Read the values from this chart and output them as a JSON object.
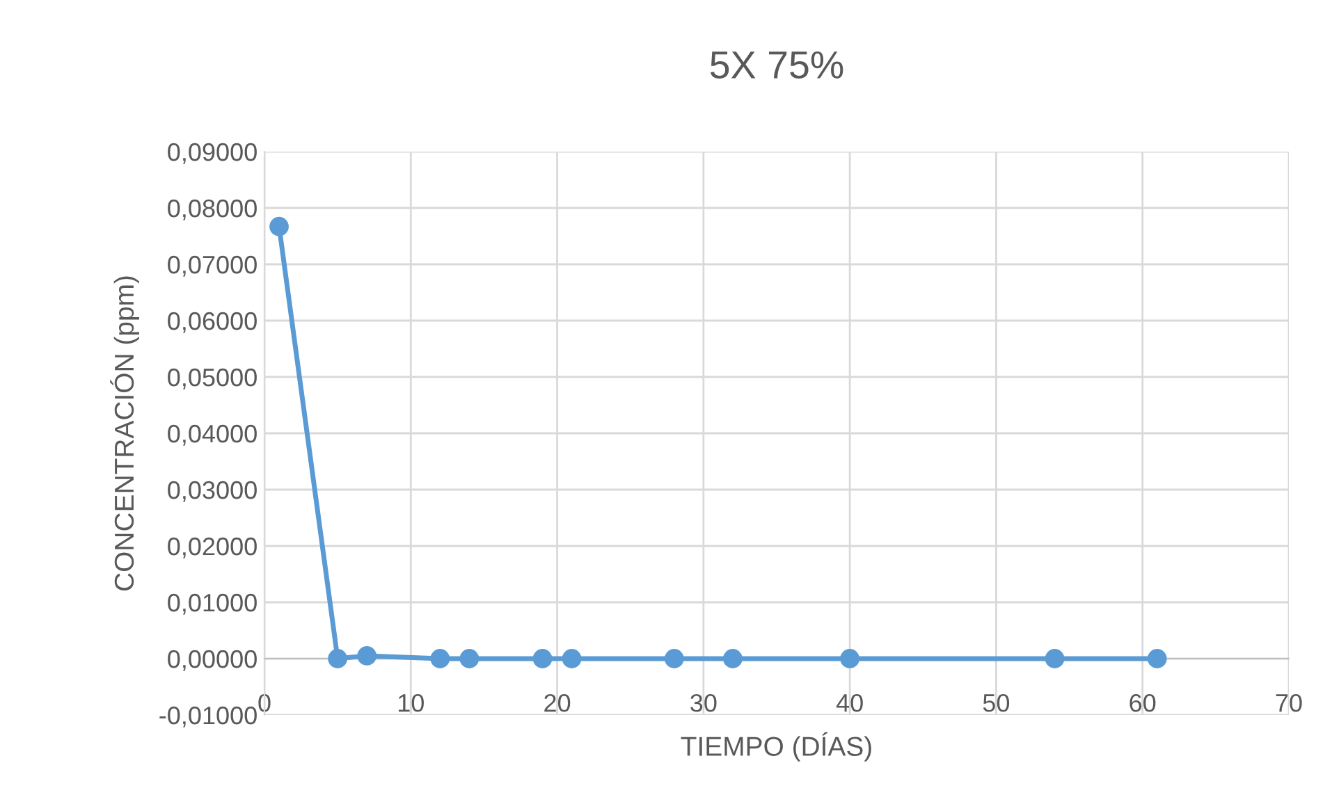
{
  "chart_data": {
    "type": "line",
    "title": "5X 75%",
    "xlabel": "TIEMPO (DÍAS)",
    "ylabel": "CONCENTRACIÓN (ppm)",
    "x": [
      1,
      5,
      7,
      12,
      14,
      19,
      21,
      28,
      32,
      40,
      54,
      61
    ],
    "series": [
      {
        "color": "#5b9bd5",
        "values": [
          0.0767,
          0.0,
          0.0005,
          0.0,
          0.0,
          0.0,
          0.0,
          0.0,
          0.0,
          0.0,
          0.0,
          0.0
        ]
      }
    ],
    "xlim": [
      0,
      70
    ],
    "xticks": [
      0,
      10,
      20,
      30,
      40,
      50,
      60,
      70
    ],
    "ylim": [
      -0.01,
      0.09
    ],
    "yticks": [
      {
        "value": -0.01,
        "label": "-0,01000"
      },
      {
        "value": 0,
        "label": "0,00000"
      },
      {
        "value": 0.01,
        "label": "0,01000"
      },
      {
        "value": 0.02,
        "label": "0,02000"
      },
      {
        "value": 0.03,
        "label": "0,03000"
      },
      {
        "value": 0.04,
        "label": "0,04000"
      },
      {
        "value": 0.05,
        "label": "0,05000"
      },
      {
        "value": 0.06,
        "label": "0,06000"
      },
      {
        "value": 0.07,
        "label": "0,07000"
      },
      {
        "value": 0.08,
        "label": "0,08000"
      },
      {
        "value": 0.09,
        "label": "0,09000"
      }
    ],
    "grid": true,
    "marker": "circle",
    "line_style": "solid"
  }
}
